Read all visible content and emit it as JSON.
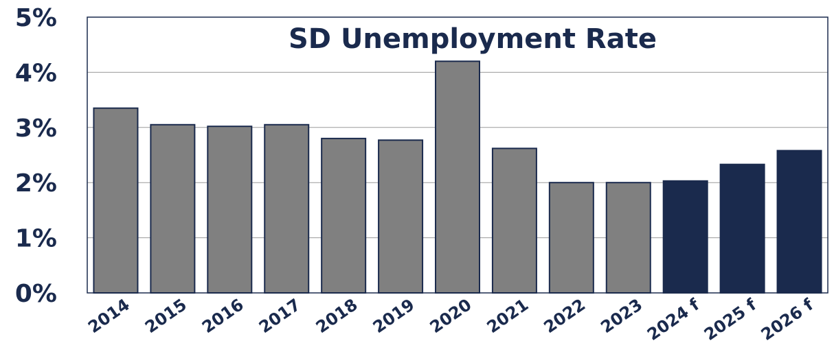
{
  "chart_data": {
    "type": "bar",
    "title": "SD Unemployment Rate",
    "xlabel": "",
    "ylabel": "",
    "categories": [
      "2014",
      "2015",
      "2016",
      "2017",
      "2018",
      "2019",
      "2020",
      "2021",
      "2022",
      "2023",
      "2024 f",
      "2025 f",
      "2026 f"
    ],
    "values": [
      3.35,
      3.05,
      3.02,
      3.05,
      2.8,
      2.77,
      4.2,
      2.62,
      2.0,
      2.0,
      2.03,
      2.33,
      2.58
    ],
    "forecast": [
      false,
      false,
      false,
      false,
      false,
      false,
      false,
      false,
      false,
      false,
      true,
      true,
      true
    ],
    "ylim": [
      0,
      5
    ],
    "yticks": [
      0,
      1,
      2,
      3,
      4,
      5
    ],
    "ytick_labels": [
      "0%",
      "1%",
      "2%",
      "3%",
      "4%",
      "5%"
    ],
    "grid": true,
    "legend": "none",
    "colors": {
      "actual": "#808080",
      "forecast": "#1a2a4d",
      "bar_edge": "#1a2a4d",
      "text": "#1a2a4d",
      "grid": "#9a9a9a",
      "frame": "#1a2a4d"
    }
  }
}
